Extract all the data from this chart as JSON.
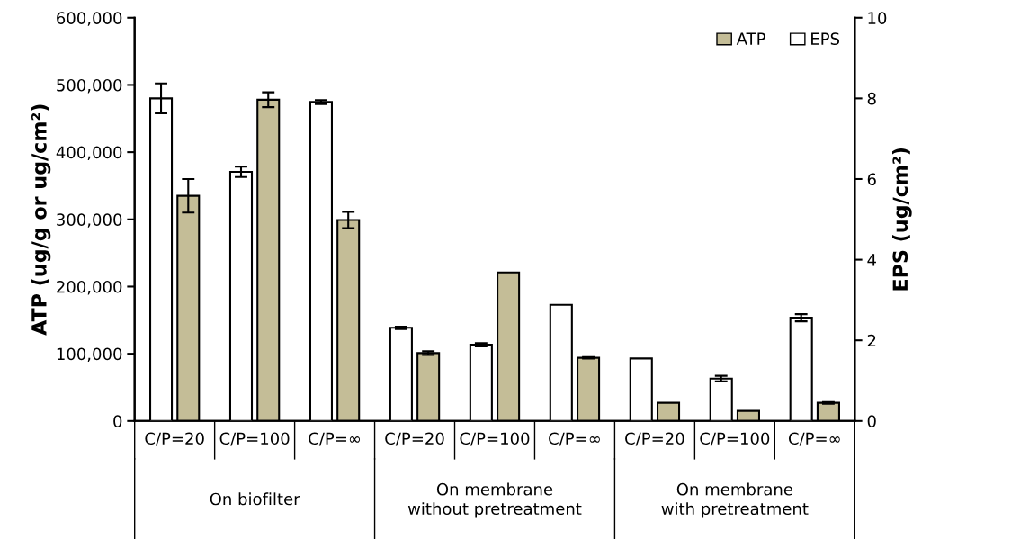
{
  "chart_data": {
    "type": "bar",
    "ylabel": "ATP (ug/g or ug/cm²)",
    "y2label": "EPS (ug/cm²)",
    "categories": [
      "C/P=20",
      "C/P=100",
      "C/P=∞",
      "C/P=20",
      "C/P=100",
      "C/P=∞",
      "C/P=20",
      "C/P=100",
      "C/P=∞"
    ],
    "annotations": [
      "On biofilter",
      "On membrane\nwithout pretreatment",
      "On membrane\nwith pretreatment"
    ],
    "series": [
      {
        "name": "EPS",
        "color": "#ffffff",
        "axis": "y2",
        "values": [
          8.0,
          6.18,
          7.91,
          2.31,
          1.89,
          2.88,
          1.55,
          1.05,
          2.56
        ],
        "errors": [
          0.37,
          0.13,
          0.05,
          0.03,
          0.04,
          null,
          null,
          0.07,
          0.09
        ]
      },
      {
        "name": "ATP",
        "color": "#c4bd97",
        "values": [
          335000,
          478000,
          299000,
          101000,
          221000,
          94000,
          27000,
          15000,
          27000
        ],
        "errors": [
          25000,
          11000,
          12000,
          2700,
          null,
          1000,
          null,
          null,
          1300
        ]
      }
    ],
    "ylim": [
      0,
      600000
    ],
    "yticks": [
      0,
      {
        "value": 100000,
        "label": "100,000"
      },
      {
        "value": 200000,
        "label": "200,000"
      },
      {
        "value": 300000,
        "label": "300,000"
      },
      {
        "value": 400000,
        "label": "400,000"
      },
      {
        "value": 500000,
        "label": "500,000"
      },
      {
        "value": 600000,
        "label": "600,000"
      }
    ],
    "y2lim": [
      0,
      10
    ],
    "y2ticks": [
      0,
      2,
      4,
      6,
      8,
      10
    ],
    "legend": "top right"
  }
}
